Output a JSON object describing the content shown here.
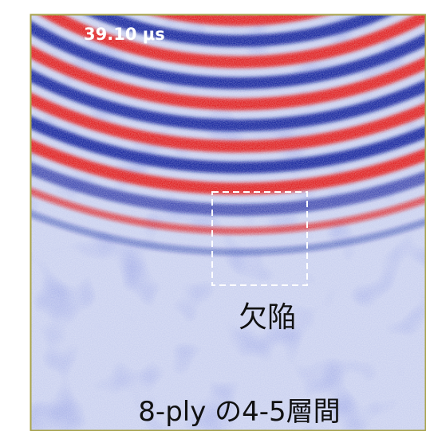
{
  "timestamp": "39.10 μs",
  "defect_label": "欠陥",
  "caption": "8-ply の4-5層間"
}
